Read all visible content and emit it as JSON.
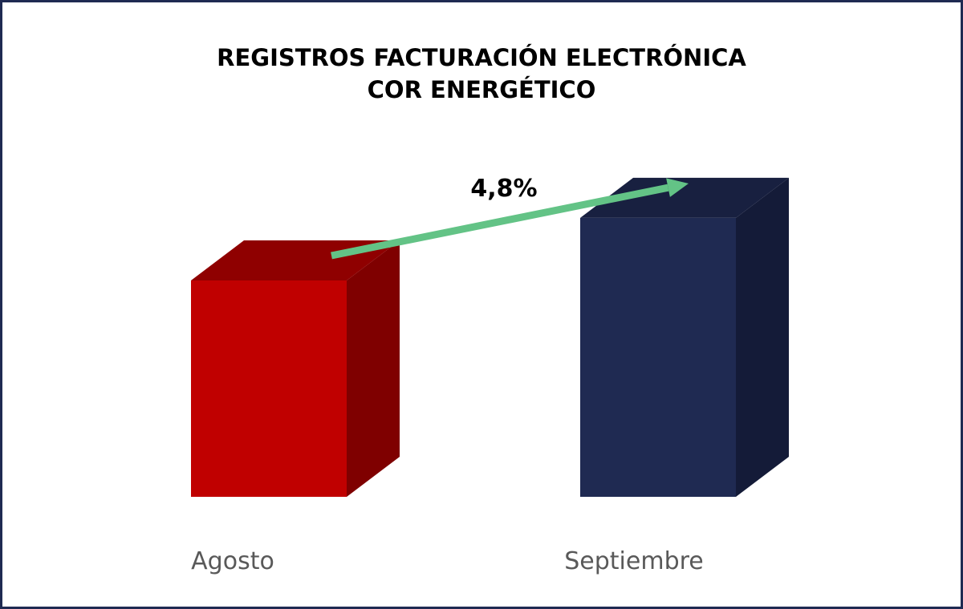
{
  "chart_data": {
    "type": "bar",
    "title_lines": [
      "REGISTROS FACTURACIÓN ELECTRÓNICA",
      "COR ENERGÉTICO"
    ],
    "categories": [
      "Agosto",
      "Septiembre"
    ],
    "values": [
      100,
      104.8
    ],
    "value_note": "relative index (Agosto = 100); absolute values not printed",
    "ylim": [
      83.4,
      110
    ],
    "xlabel": "",
    "ylabel": "",
    "grid": false,
    "legend": "none",
    "annotations": [
      {
        "text": "4,8%",
        "type": "growth-arrow",
        "from": "Agosto",
        "to": "Septiembre"
      }
    ],
    "colors": {
      "Agosto": {
        "front": "#c00000",
        "top": "#8f0000",
        "side": "#7f0000"
      },
      "Septiembre": {
        "front": "#1f2a52",
        "top": "#182040",
        "side": "#141b38"
      },
      "arrow": "#63c386",
      "axis_label": "#595959",
      "border": "#1f2a52"
    }
  }
}
